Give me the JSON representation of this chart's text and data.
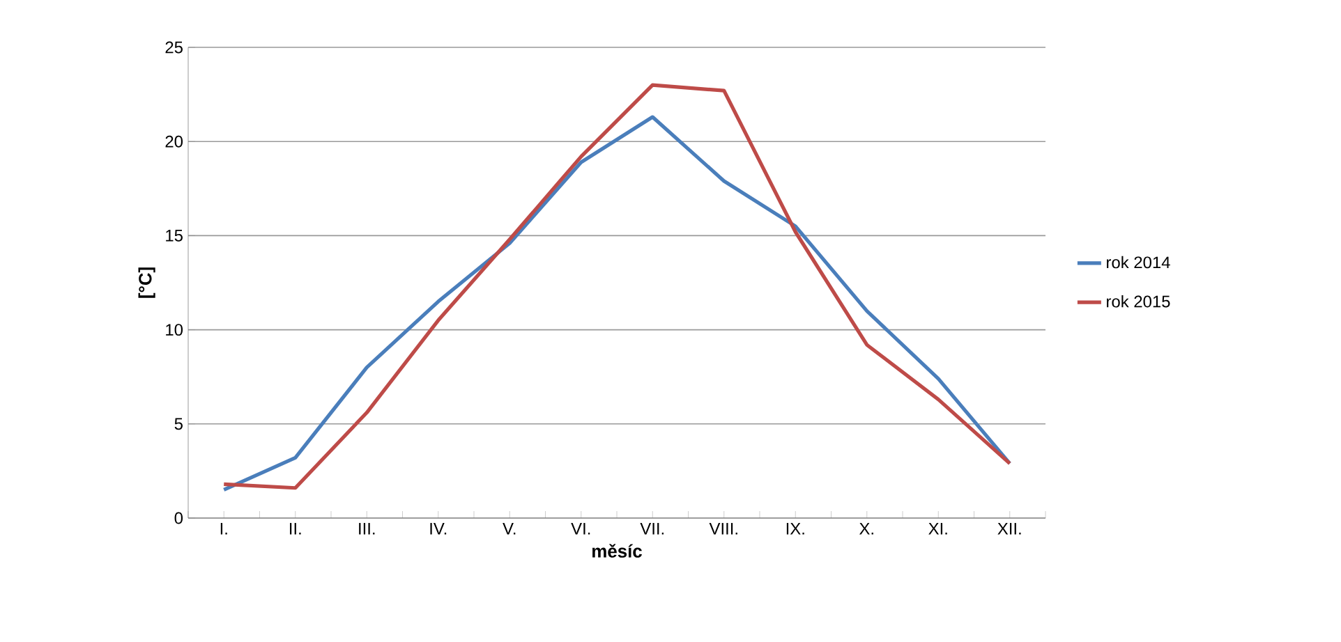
{
  "chart_data": {
    "type": "line",
    "xlabel": "měsíc",
    "ylabel": "[°C]",
    "categories": [
      "I.",
      "II.",
      "III.",
      "IV.",
      "V.",
      "VI.",
      "VII.",
      "VIII.",
      "IX.",
      "X.",
      "XI.",
      "XII."
    ],
    "series": [
      {
        "name": "rok 2014",
        "color": "#4a7ebb",
        "values": [
          1.5,
          3.2,
          8.0,
          11.5,
          14.6,
          18.9,
          21.3,
          17.9,
          15.5,
          11.0,
          7.4,
          2.9
        ]
      },
      {
        "name": "rok 2015",
        "color": "#be4b48",
        "values": [
          1.8,
          1.6,
          5.6,
          10.5,
          14.8,
          19.2,
          23.0,
          22.7,
          15.2,
          9.2,
          6.3,
          2.9
        ]
      }
    ],
    "ylim": [
      0,
      25
    ],
    "yticks": [
      0,
      5,
      10,
      15,
      20,
      25
    ],
    "grid": "y",
    "legend": "right",
    "marker": "none",
    "line_style": "solid"
  }
}
